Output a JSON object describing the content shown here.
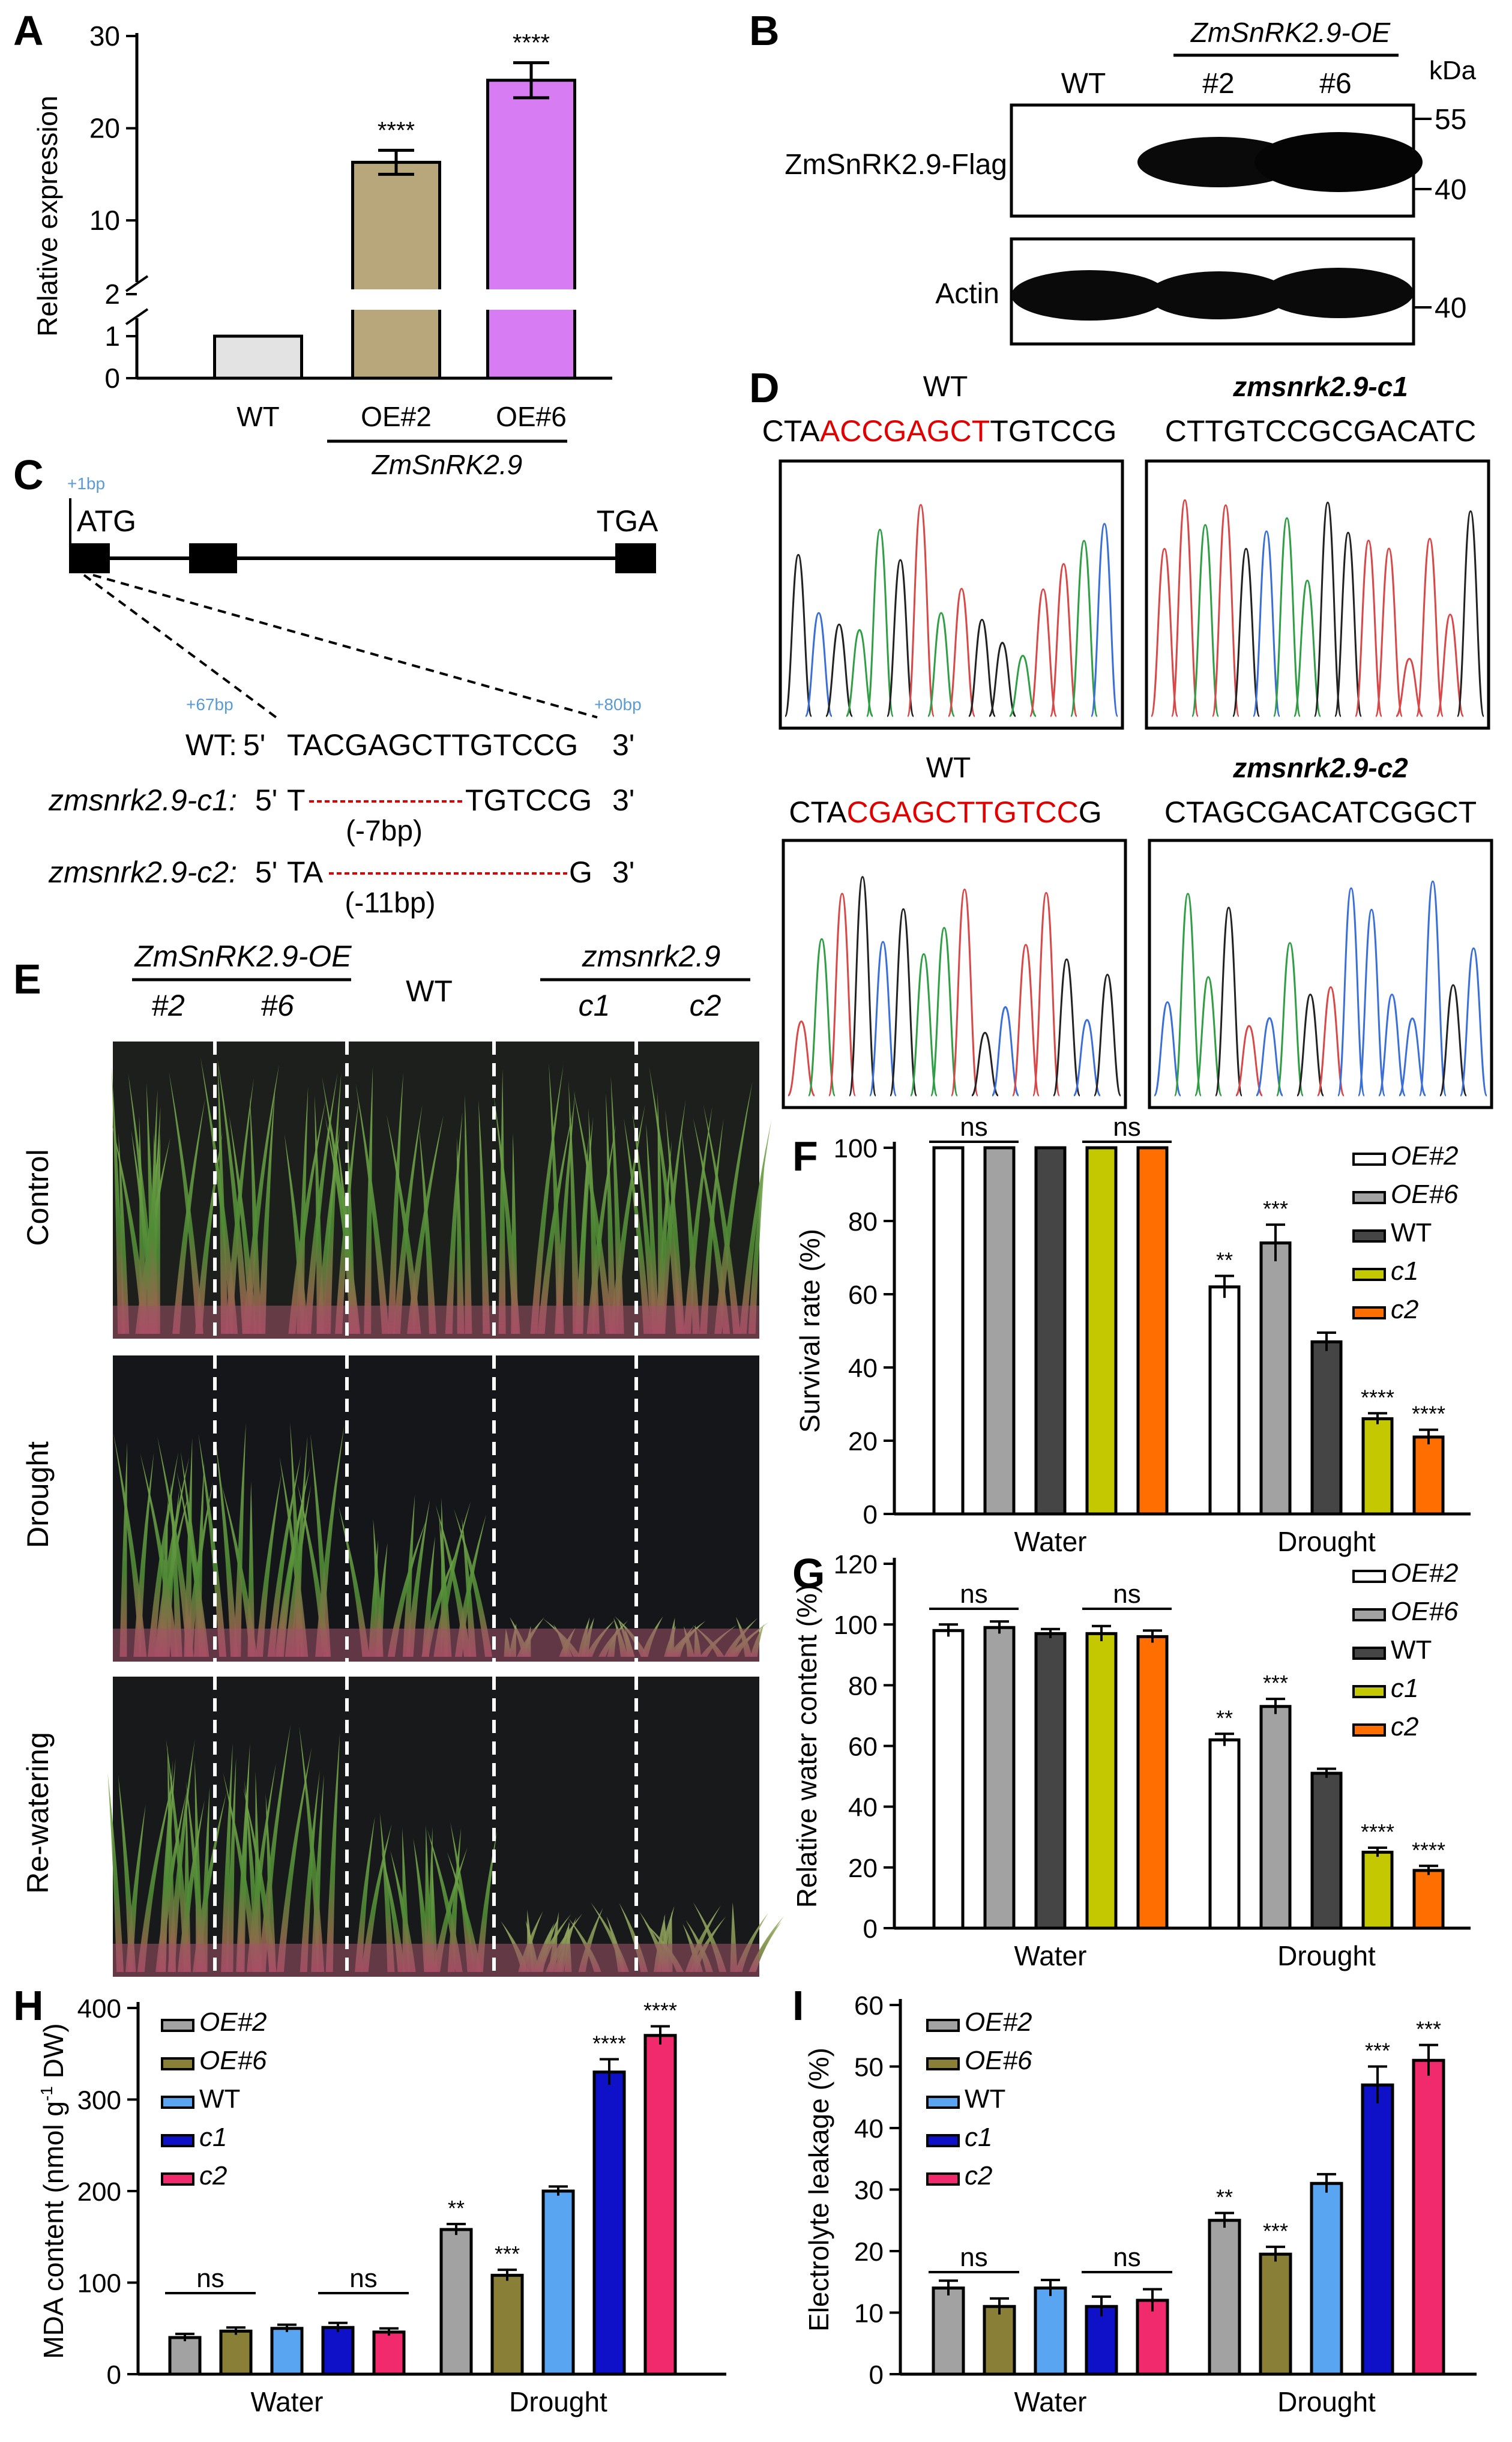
{
  "panels": [
    "A",
    "B",
    "C",
    "D",
    "E",
    "F",
    "G",
    "H",
    "I"
  ],
  "panelA": {
    "ylabel": "Relative expression",
    "gene": "ZmSnRK2.9",
    "chart_data": {
      "type": "bar",
      "categories": [
        "WT",
        "OE#2",
        "OE#6"
      ],
      "values": [
        1,
        16.3,
        25.2
      ],
      "errors": [
        0,
        1.3,
        1.9
      ],
      "significance": [
        "",
        "****",
        "****"
      ],
      "colors": [
        "#e3e3e3",
        "#b8a77a",
        "#d77cf3"
      ],
      "yticks": [
        "0",
        "1",
        "2",
        "10",
        "20",
        "30"
      ],
      "axis_break": "between 1 and 2",
      "ylim": [
        0,
        30
      ]
    }
  },
  "panelB": {
    "header": "ZmSnRK2.9-OE",
    "lanes": [
      "WT",
      "#2",
      "#6"
    ],
    "unit": "kDa",
    "rows": [
      "ZmSnRK2.9-Flag",
      "Actin"
    ],
    "markers": [
      "55",
      "40",
      "40"
    ]
  },
  "panelC": {
    "start_codon": "ATG",
    "stop_codon": "TGA",
    "positions": [
      "+1bp",
      "+67bp",
      "+80bp"
    ],
    "rows": [
      {
        "label": "WT:",
        "five": "5'",
        "seq": "TACGAGCTTGTCCG",
        "three": "3'"
      },
      {
        "label": "zmsnrk2.9-c1:",
        "five": "5'",
        "left": "T",
        "right": "TGTCCG",
        "three": "3'",
        "deletion": "(-7bp)"
      },
      {
        "label": "zmsnrk2.9-c2:",
        "five": "5'",
        "left": "TA",
        "right": "G",
        "three": "3'",
        "deletion": "(-11bp)"
      }
    ]
  },
  "panelD": {
    "pair1": {
      "wt_title": "WT",
      "wt_seq": {
        "pre": "CTA",
        "mid": "CGAGCT",
        "post": "TGTCCG",
        "prefix_red": "AC"
      },
      "mut_title": "zmsnrk2.9-c1",
      "mut_seq": "CTTGTCCGCGACATC"
    },
    "pair2": {
      "wt_title": "WT",
      "wt_seq": {
        "pre": "CTA",
        "mid": "CGAGCTTGTCC",
        "post": "G"
      },
      "mut_title": "zmsnrk2.9-c2",
      "mut_seq": "CTAGCGACATCGGCT"
    }
  },
  "panelE": {
    "group_left": "ZmSnRK2.9-OE",
    "group_right": "zmsnrk2.9",
    "lines": [
      "#2",
      "#6",
      "WT",
      "c1",
      "c2"
    ],
    "conditions": [
      "Control",
      "Drought",
      "Re-watering"
    ]
  },
  "legend_sets": {
    "FG": [
      "OE#2",
      "OE#6",
      "WT",
      "c1",
      "c2"
    ],
    "HI": [
      "OE#2",
      "OE#6",
      "WT",
      "c1",
      "c2"
    ]
  },
  "panelF": {
    "ylabel": "Survival rate (%)",
    "chart_data": {
      "type": "bar",
      "groups": [
        "Water",
        "Drought"
      ],
      "series": [
        {
          "name": "OE#2",
          "values": [
            100,
            62
          ],
          "errors": [
            0,
            3
          ],
          "sig": [
            "",
            "**"
          ],
          "color": "#ffffff"
        },
        {
          "name": "OE#6",
          "values": [
            100,
            74
          ],
          "errors": [
            0,
            5
          ],
          "sig": [
            "",
            "***"
          ],
          "color": "#a2a2a2"
        },
        {
          "name": "WT",
          "values": [
            100,
            47
          ],
          "errors": [
            0,
            2.5
          ],
          "sig": [
            "",
            ""
          ],
          "color": "#454545"
        },
        {
          "name": "c1",
          "values": [
            100,
            26
          ],
          "errors": [
            0,
            1.5
          ],
          "sig": [
            "",
            "****"
          ],
          "color": "#c3c800"
        },
        {
          "name": "c2",
          "values": [
            100,
            21
          ],
          "errors": [
            0,
            2
          ],
          "sig": [
            "",
            "****"
          ],
          "color": "#ff6e00"
        }
      ],
      "ns": [
        "ns",
        "ns"
      ],
      "ylim": [
        0,
        100
      ],
      "yticks": [
        "0",
        "20",
        "40",
        "60",
        "80",
        "100"
      ]
    }
  },
  "panelG": {
    "ylabel": "Relative water content (%)",
    "chart_data": {
      "type": "bar",
      "groups": [
        "Water",
        "Drought"
      ],
      "series": [
        {
          "name": "OE#2",
          "values": [
            98,
            62
          ],
          "errors": [
            2,
            2
          ],
          "sig": [
            "",
            "**"
          ],
          "color": "#ffffff"
        },
        {
          "name": "OE#6",
          "values": [
            99,
            73
          ],
          "errors": [
            2,
            2.5
          ],
          "sig": [
            "",
            "***"
          ],
          "color": "#a2a2a2"
        },
        {
          "name": "WT",
          "values": [
            97,
            51
          ],
          "errors": [
            1.5,
            1.5
          ],
          "sig": [
            "",
            ""
          ],
          "color": "#454545"
        },
        {
          "name": "c1",
          "values": [
            97,
            25
          ],
          "errors": [
            2.5,
            1.5
          ],
          "sig": [
            "",
            "****"
          ],
          "color": "#c3c800"
        },
        {
          "name": "c2",
          "values": [
            96,
            19
          ],
          "errors": [
            2,
            1.5
          ],
          "sig": [
            "",
            "****"
          ],
          "color": "#ff6e00"
        }
      ],
      "ns": [
        "ns",
        "ns"
      ],
      "ylim": [
        0,
        120
      ],
      "yticks": [
        "0",
        "20",
        "40",
        "60",
        "80",
        "100",
        "120"
      ]
    }
  },
  "panelH": {
    "ylabel_main": "MDA  content (nmol g",
    "ylabel_sup": "-1",
    "ylabel_end": " DW)",
    "chart_data": {
      "type": "bar",
      "groups": [
        "Water",
        "Drought"
      ],
      "series": [
        {
          "name": "OE#2",
          "values": [
            40,
            158
          ],
          "errors": [
            4,
            6
          ],
          "sig": [
            "",
            "**"
          ],
          "color": "#a2a2a2"
        },
        {
          "name": "OE#6",
          "values": [
            47,
            108
          ],
          "errors": [
            4,
            6
          ],
          "sig": [
            "",
            "***"
          ],
          "color": "#8a7f36"
        },
        {
          "name": "WT",
          "values": [
            50,
            200
          ],
          "errors": [
            4,
            5
          ],
          "sig": [
            "",
            ""
          ],
          "color": "#5aa5f2"
        },
        {
          "name": "c1",
          "values": [
            51,
            330
          ],
          "errors": [
            5,
            14
          ],
          "sig": [
            "",
            "****"
          ],
          "color": "#0f11c8"
        },
        {
          "name": "c2",
          "values": [
            46,
            370
          ],
          "errors": [
            4,
            10
          ],
          "sig": [
            "",
            "****"
          ],
          "color": "#f02a6c"
        }
      ],
      "ns": [
        "ns",
        "ns"
      ],
      "ylim": [
        0,
        400
      ],
      "yticks": [
        "0",
        "100",
        "200",
        "300",
        "400"
      ]
    }
  },
  "panelI": {
    "ylabel": "Electrolyte leakage (%)",
    "chart_data": {
      "type": "bar",
      "groups": [
        "Water",
        "Drought"
      ],
      "series": [
        {
          "name": "OE#2",
          "values": [
            14,
            25
          ],
          "errors": [
            1.2,
            1.2
          ],
          "sig": [
            "",
            "**"
          ],
          "color": "#a2a2a2"
        },
        {
          "name": "OE#6",
          "values": [
            11,
            19.5
          ],
          "errors": [
            1.3,
            1.2
          ],
          "sig": [
            "",
            "***"
          ],
          "color": "#8a7f36"
        },
        {
          "name": "WT",
          "values": [
            14,
            31
          ],
          "errors": [
            1.3,
            1.5
          ],
          "sig": [
            "",
            ""
          ],
          "color": "#5aa5f2"
        },
        {
          "name": "c1",
          "values": [
            11,
            47
          ],
          "errors": [
            1.6,
            3
          ],
          "sig": [
            "",
            "***"
          ],
          "color": "#0f11c8"
        },
        {
          "name": "c2",
          "values": [
            12,
            51
          ],
          "errors": [
            1.8,
            2.5
          ],
          "sig": [
            "",
            "***"
          ],
          "color": "#f02a6c"
        }
      ],
      "ns": [
        "ns",
        "ns"
      ],
      "ylim": [
        0,
        60
      ],
      "yticks": [
        "0",
        "10",
        "20",
        "30",
        "40",
        "50",
        "60"
      ]
    }
  }
}
